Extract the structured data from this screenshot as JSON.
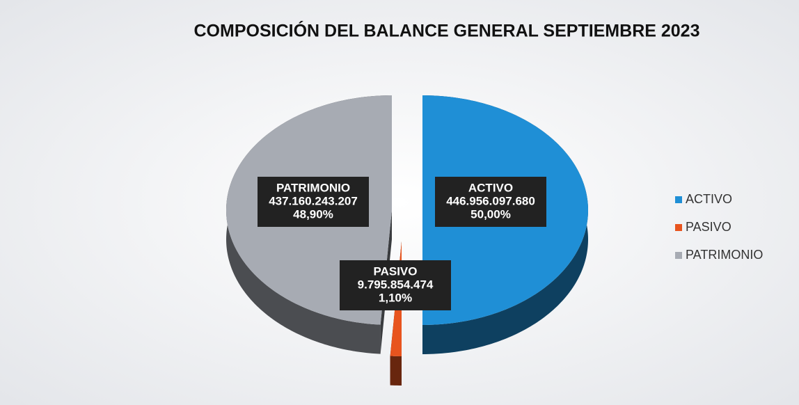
{
  "chart_data": {
    "type": "pie",
    "title": "COMPOSICIÓN DEL BALANCE GENERAL SEPTIEMBRE 2023",
    "categories": [
      "ACTIVO",
      "PASIVO",
      "PATRIMONIO"
    ],
    "values": [
      446956097680,
      9795854474,
      437160243207
    ],
    "value_labels": [
      "446.956.097.680",
      "9.795.854.474",
      "437.160.243.207"
    ],
    "percent_labels": [
      "50,00%",
      "1,10%",
      "48,90%"
    ],
    "colors": [
      "#1f8fd6",
      "#e8541e",
      "#a7abb3"
    ],
    "legend": "right"
  }
}
